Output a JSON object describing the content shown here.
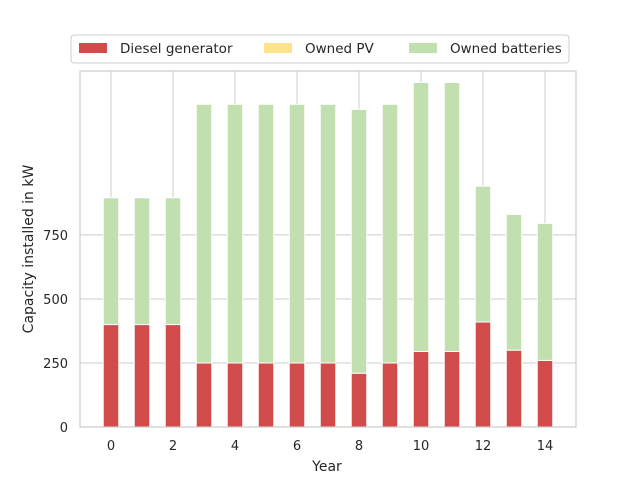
{
  "chart_data": {
    "type": "bar",
    "stacked": true,
    "title": "",
    "xlabel": "Year",
    "ylabel": "Capacity installed in kW",
    "categories": [
      0,
      1,
      2,
      3,
      4,
      5,
      6,
      7,
      8,
      9,
      10,
      11,
      12,
      13,
      14
    ],
    "x_tick_labels": [
      "0",
      "2",
      "4",
      "6",
      "8",
      "10",
      "12",
      "14"
    ],
    "y_tick_labels": [
      "0",
      "250",
      "500",
      "750"
    ],
    "ylim": [
      0,
      1390
    ],
    "grid": true,
    "legend_position": "top",
    "series": [
      {
        "name": "Diesel generator",
        "color": "#d14b4b",
        "values": [
          400,
          400,
          400,
          250,
          250,
          250,
          250,
          250,
          210,
          250,
          295,
          295,
          410,
          300,
          260
        ]
      },
      {
        "name": "Owned PV",
        "color": "#fde38d",
        "values": [
          0,
          0,
          0,
          0,
          0,
          0,
          0,
          0,
          0,
          0,
          0,
          0,
          0,
          0,
          0
        ]
      },
      {
        "name": "Owned batteries",
        "color": "#c2dfaf",
        "values": [
          495,
          495,
          495,
          1010,
          1010,
          1010,
          1010,
          1010,
          1030,
          1010,
          1050,
          1050,
          530,
          530,
          535
        ]
      }
    ]
  }
}
